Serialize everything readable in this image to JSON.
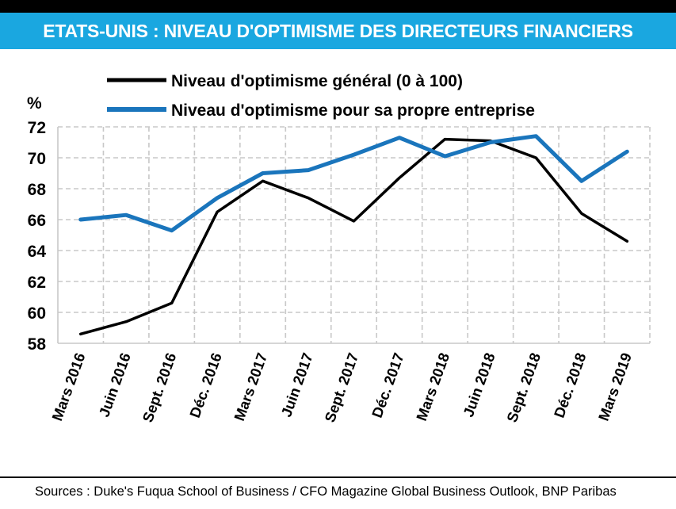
{
  "header": {
    "title": "ETATS-UNIS : NIVEAU D'OPTIMISME DES DIRECTEURS FINANCIERS"
  },
  "footer": {
    "source": "Sources : Duke's Fuqua School of Business / CFO Magazine Global Business Outlook, BNP Paribas"
  },
  "colors": {
    "band": "#1AA7E0",
    "series_general": "#000000",
    "series_company": "#1A75BC",
    "grid": "#C8C8C8"
  },
  "chart_data": {
    "type": "line",
    "title": "ETATS-UNIS : NIVEAU D'OPTIMISME DES DIRECTEURS FINANCIERS",
    "ylabel": "%",
    "xlabel": "",
    "ylim": [
      58,
      72
    ],
    "yticks": [
      58,
      60,
      62,
      64,
      66,
      68,
      70,
      72
    ],
    "grid": "horizontal and vertical dashed",
    "legend_position": "top",
    "categories": [
      "Mars 2016",
      "Juin 2016",
      "Sept. 2016",
      "Déc. 2016",
      "Mars 2017",
      "Juin 2017",
      "Sept. 2017",
      "Déc. 2017",
      "Mars 2018",
      "Juin 2018",
      "Sept. 2018",
      "Déc. 2018",
      "Mars 2019"
    ],
    "series": [
      {
        "name": "Niveau d'optimisme général (0 à 100)",
        "color": "#000000",
        "values": [
          58.6,
          59.4,
          60.6,
          66.5,
          68.5,
          67.4,
          65.9,
          68.7,
          71.2,
          71.1,
          70.0,
          66.4,
          64.6
        ]
      },
      {
        "name": "Niveau d'optimisme pour sa propre entreprise",
        "color": "#1A75BC",
        "values": [
          66.0,
          66.3,
          65.3,
          67.4,
          69.0,
          69.2,
          70.2,
          71.3,
          70.1,
          71.0,
          71.4,
          68.5,
          70.4
        ]
      }
    ]
  }
}
